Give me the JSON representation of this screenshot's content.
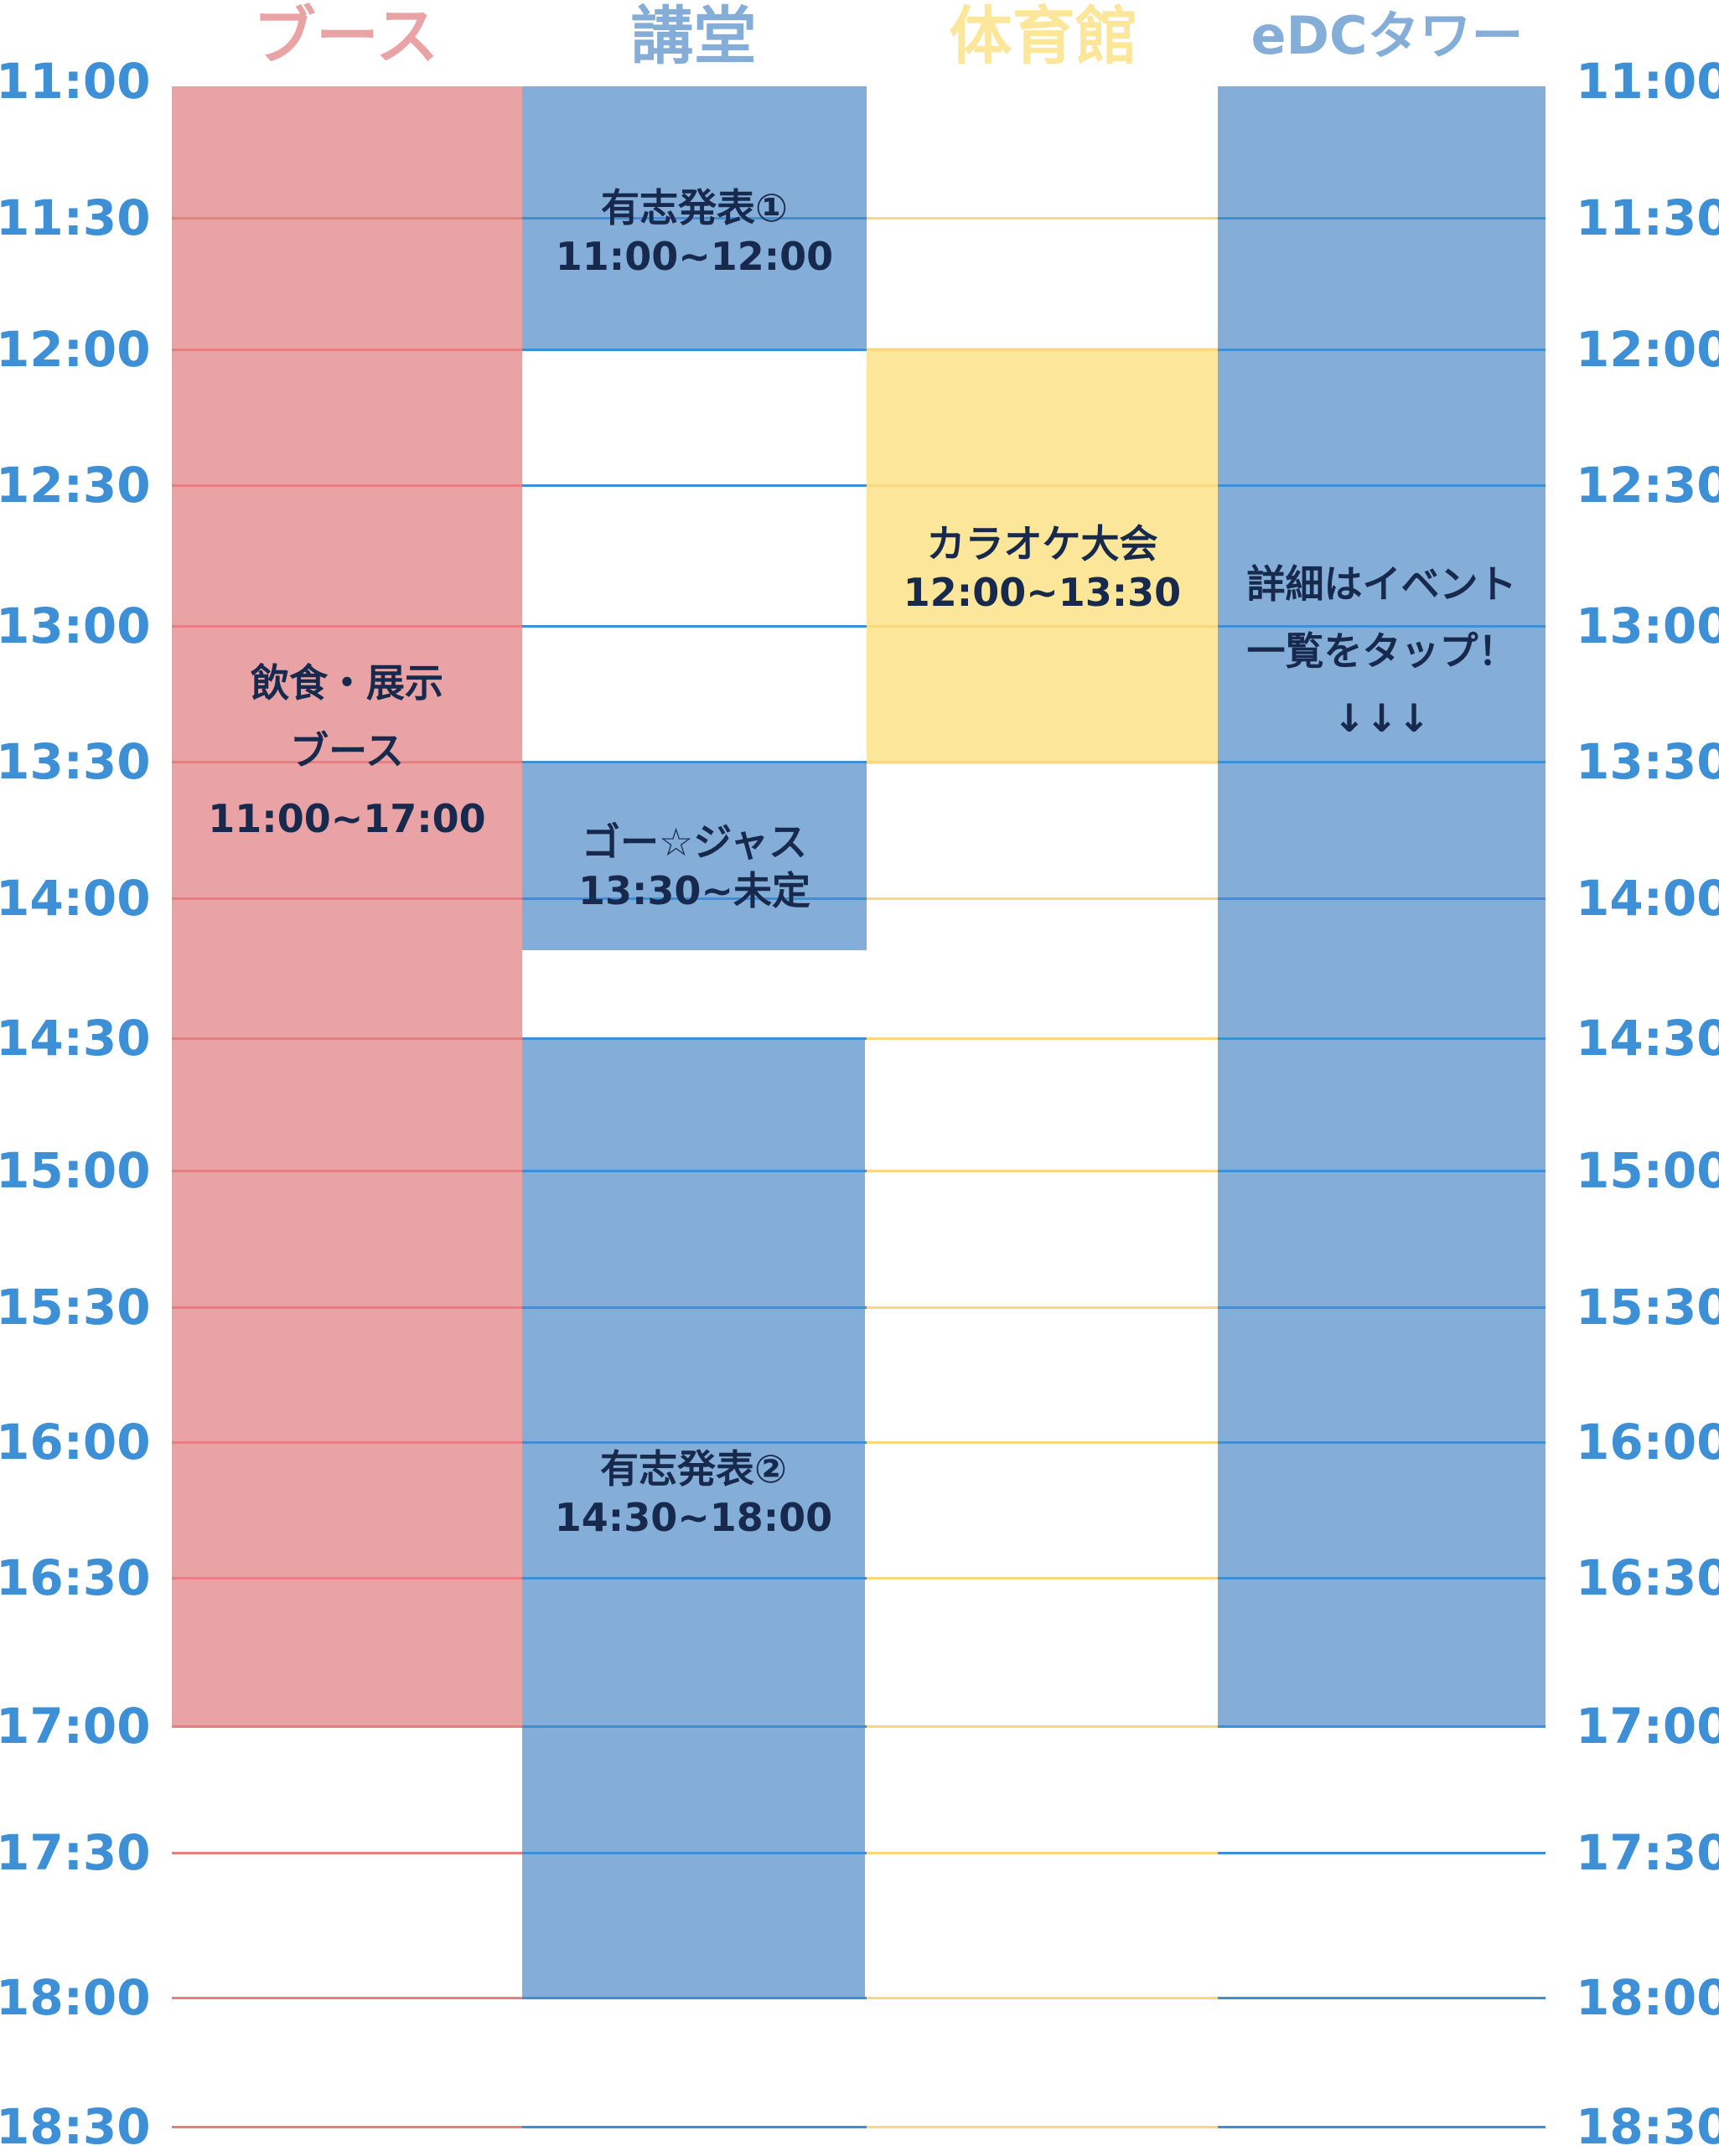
{
  "colors": {
    "booth": "#e9a3a5",
    "booth_line": "#e57f84",
    "blue": "#84aed8",
    "blue_line": "#3d8fd6",
    "gym": "#fce699",
    "gym_line": "#fbd780",
    "time_text": "#3d8fd6",
    "event_text": "#172a4d"
  },
  "venues": [
    {
      "id": "booth",
      "label": "ブース",
      "color": "#e9a3a5"
    },
    {
      "id": "auditorium",
      "label": "講堂",
      "color": "#84aed8"
    },
    {
      "id": "gym",
      "label": "体育館",
      "color": "#fce699"
    },
    {
      "id": "edc",
      "label": "eDCタワー",
      "color": "#84aed8"
    }
  ],
  "times": [
    "11:00",
    "11:30",
    "12:00",
    "12:30",
    "13:00",
    "13:30",
    "14:00",
    "14:30",
    "15:00",
    "15:30",
    "16:00",
    "16:30",
    "17:00",
    "17:30",
    "18:00",
    "18:30"
  ],
  "events": {
    "booth": {
      "lines": [
        "飲食・展示",
        "ブース",
        "11:00~17:00"
      ]
    },
    "auditorium_1": {
      "lines": [
        "有志発表①",
        "11:00~12:00"
      ]
    },
    "gym": {
      "lines": [
        "カラオケ大会",
        "12:00~13:30"
      ]
    },
    "edc": {
      "lines": [
        "詳細はイベント",
        "一覧をタップ！",
        "↓↓↓"
      ]
    },
    "auditorium_2": {
      "lines": [
        "ゴー☆ジャス",
        "13:30~未定"
      ]
    },
    "auditorium_3": {
      "lines": [
        "有志発表②",
        "14:30~18:00"
      ]
    }
  }
}
